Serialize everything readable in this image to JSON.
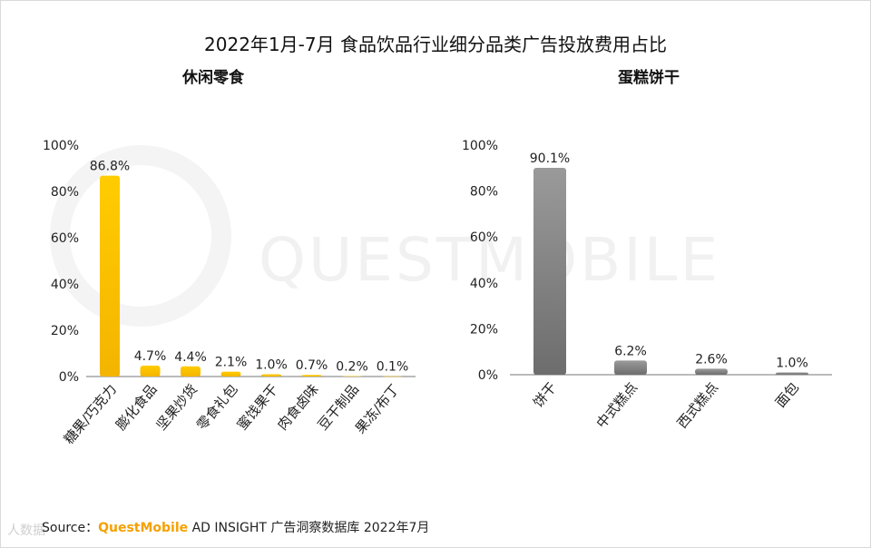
{
  "title": "2022年1月-7月 食品饮品行业细分品类广告投放费用占比",
  "source": {
    "prefix": "Source：",
    "brand": "QuestMobile",
    "suffix": " AD INSIGHT 广告洞察数据库 2022年7月"
  },
  "watermark": "QUESTMOBILE",
  "corner_logo": "人数据 ",
  "colors": {
    "left_bar_top": "#ffcc00",
    "left_bar_bottom": "#f4b400",
    "right_bar_top": "#9a9a9a",
    "right_bar_bottom": "#6d6d6d",
    "axis": "#777777"
  },
  "chart_data": [
    {
      "type": "bar",
      "title": "休闲零食",
      "categories": [
        "糖果/巧克力",
        "膨化食品",
        "坚果炒货",
        "零食礼包",
        "蜜饯果干",
        "肉食卤味",
        "豆干制品",
        "果冻/布丁"
      ],
      "values": [
        86.8,
        4.7,
        4.4,
        2.1,
        1.0,
        0.7,
        0.2,
        0.1
      ],
      "value_labels": [
        "86.8%",
        "4.7%",
        "4.4%",
        "2.1%",
        "1.0%",
        "0.7%",
        "0.2%",
        "0.1%"
      ],
      "ylim": [
        0,
        100
      ],
      "yticks": [
        "0%",
        "20%",
        "40%",
        "60%",
        "80%",
        "100%"
      ],
      "grid": false
    },
    {
      "type": "bar",
      "title": "蛋糕饼干",
      "categories": [
        "饼干",
        "中式糕点",
        "西式糕点",
        "面包"
      ],
      "values": [
        90.1,
        6.2,
        2.6,
        1.0
      ],
      "value_labels": [
        "90.1%",
        "6.2%",
        "2.6%",
        "1.0%"
      ],
      "ylim": [
        0,
        100
      ],
      "yticks": [
        "0%",
        "20%",
        "40%",
        "60%",
        "80%",
        "100%"
      ],
      "grid": false
    }
  ]
}
